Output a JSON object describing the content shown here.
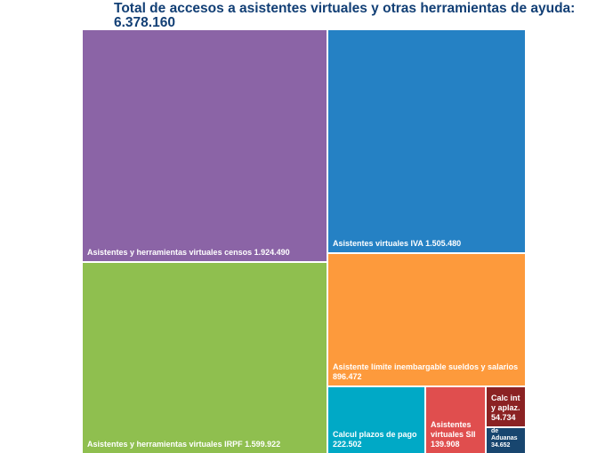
{
  "chart_data": {
    "type": "treemap",
    "title": "Total de accesos a asistentes virtuales y otras herramientas de ayuda:",
    "subtitle": "6.378.160",
    "items": [
      {
        "name": "Asistentes y herramientas virtuales censos",
        "value": 1924490,
        "label": "1.924.490",
        "color": "#8b64a6"
      },
      {
        "name": "Asistentes y herramientas virtuales IRPF",
        "value": 1599922,
        "label": "1.599.922",
        "color": "#8fbf4f"
      },
      {
        "name": "Asistentes virtuales IVA",
        "value": 1505480,
        "label": "1.505.480",
        "color": "#2581c4"
      },
      {
        "name": "Asistente límite inembargable sueldos y salarios",
        "value": 896472,
        "label": "896.472",
        "color": "#fd9a3c"
      },
      {
        "name": "Calcul plazos de pago",
        "value": 222502,
        "label": "222.502",
        "color": "#00a9c6"
      },
      {
        "name": "Asistentes virtuales SII",
        "value": 139908,
        "label": "139.908",
        "color": "#e04e4e"
      },
      {
        "name": "Calc int y aplaz.",
        "value": 54734,
        "label": "54.734",
        "color": "#8b2223"
      },
      {
        "name": "Informador de Aduanas",
        "value": 34652,
        "label": "34.652",
        "color": "#18466f"
      }
    ]
  }
}
